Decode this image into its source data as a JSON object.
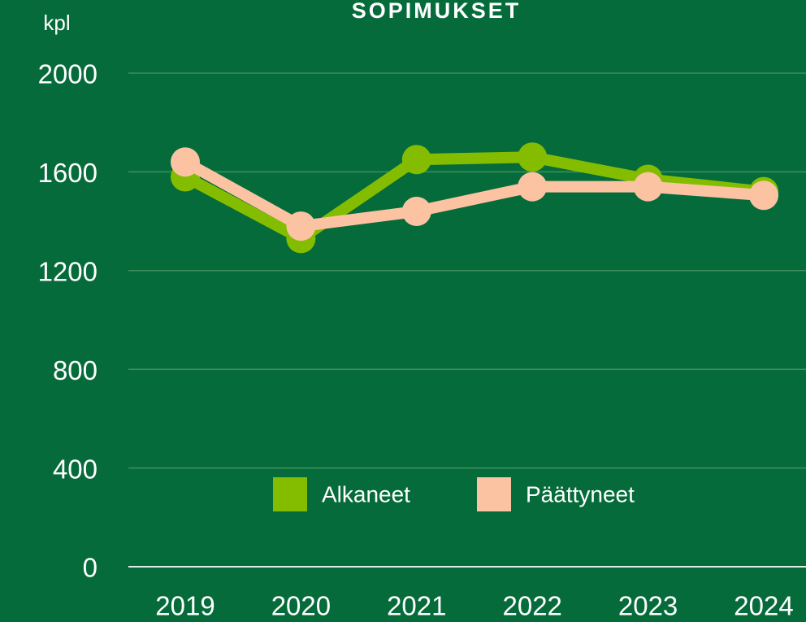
{
  "chart_data": {
    "type": "line",
    "title": "SOPIMUKSET",
    "y_label": "kpl",
    "categories": [
      "2019",
      "2020",
      "2021",
      "2022",
      "2023",
      "2024"
    ],
    "series": [
      {
        "name": "Alkaneet",
        "color": "#84bd00",
        "values": [
          1580,
          1330,
          1650,
          1660,
          1570,
          1520
        ]
      },
      {
        "name": "Päättyneet",
        "color": "#fcc3a3",
        "values": [
          1640,
          1380,
          1440,
          1540,
          1540,
          1505
        ]
      }
    ],
    "ylim": [
      0,
      2000
    ],
    "yticks": [
      0,
      400,
      800,
      1200,
      1600,
      2000
    ],
    "grid": true,
    "legend": "bottom"
  }
}
